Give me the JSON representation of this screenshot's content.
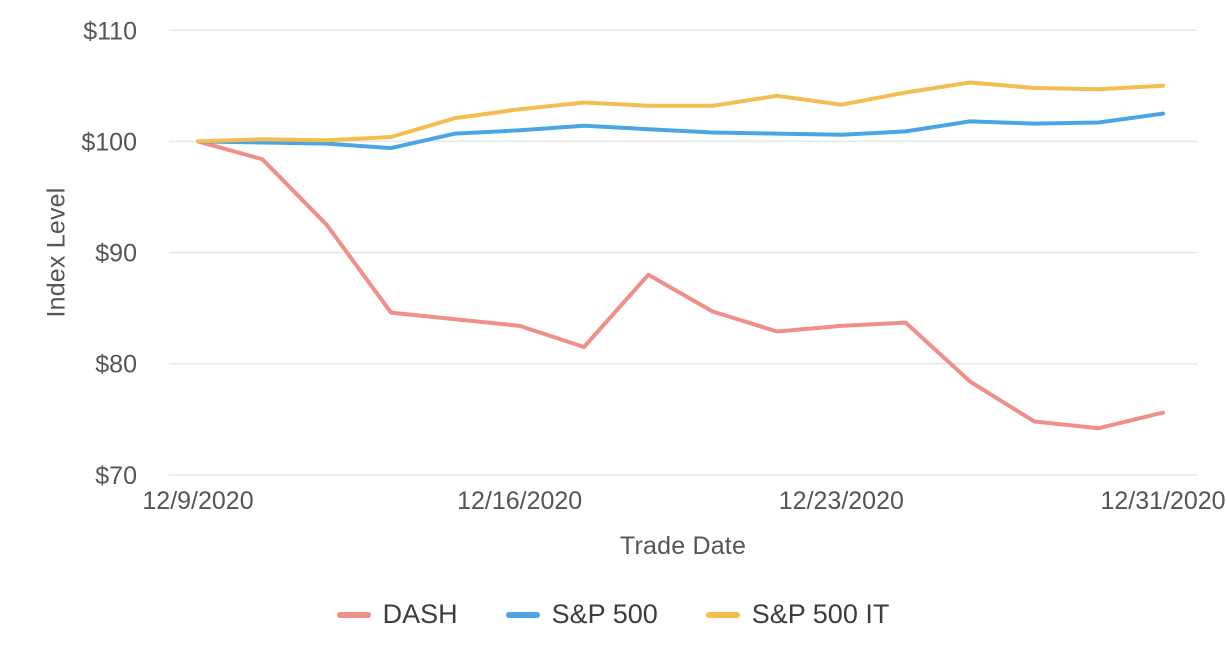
{
  "chart_data": {
    "type": "line",
    "title": "",
    "xlabel": "Trade Date",
    "ylabel": "Index Level",
    "value_format": "USD",
    "grid": "horizontal",
    "legend_position": "bottom",
    "ylim": [
      70,
      110
    ],
    "x": [
      "12/9/2020",
      "12/10/2020",
      "12/11/2020",
      "12/14/2020",
      "12/15/2020",
      "12/16/2020",
      "12/17/2020",
      "12/18/2020",
      "12/21/2020",
      "12/22/2020",
      "12/23/2020",
      "12/24/2020",
      "12/28/2020",
      "12/29/2020",
      "12/30/2020",
      "12/31/2020"
    ],
    "x_tick_labels": [
      "12/9/2020",
      "12/16/2020",
      "12/23/2020",
      "12/31/2020"
    ],
    "x_tick_indices": [
      0,
      5,
      10,
      15
    ],
    "y_ticks": [
      {
        "label": "$110",
        "value": 110
      },
      {
        "label": "$100",
        "value": 100
      },
      {
        "label": "$90",
        "value": 90
      },
      {
        "label": "$80",
        "value": 80
      },
      {
        "label": "$70",
        "value": 70
      }
    ],
    "series": [
      {
        "name": "DASH",
        "color": "#F08E88",
        "values": [
          100,
          98.4,
          92.5,
          84.6,
          84.0,
          83.4,
          81.5,
          88.0,
          84.7,
          82.9,
          83.4,
          83.7,
          78.4,
          74.8,
          74.2,
          75.6
        ]
      },
      {
        "name": "S&P 500",
        "color": "#4BA4E5",
        "values": [
          100,
          99.9,
          99.8,
          99.4,
          100.7,
          101.0,
          101.4,
          101.1,
          100.8,
          100.7,
          100.6,
          100.9,
          101.8,
          101.6,
          101.7,
          102.5
        ]
      },
      {
        "name": "S&P 500 IT",
        "color": "#F3BD4F",
        "values": [
          100,
          100.2,
          100.1,
          100.4,
          102.1,
          102.9,
          103.5,
          103.2,
          103.2,
          104.1,
          103.3,
          104.4,
          105.3,
          104.8,
          104.7,
          105.0
        ]
      }
    ],
    "style": {
      "gridline_color": "#E6E6E6",
      "tick_label_color": "#555555",
      "axis_title_color": "#555555",
      "legend_text_color": "#3d3d3d",
      "line_width": 4
    }
  }
}
